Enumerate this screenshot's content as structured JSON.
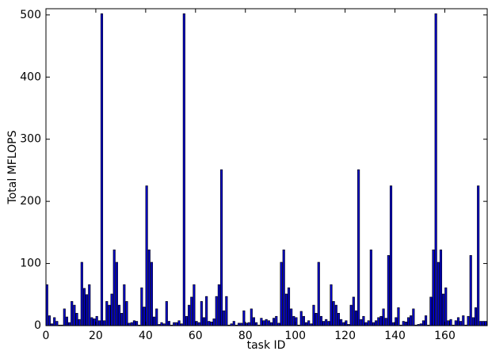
{
  "chart_data": {
    "type": "bar",
    "x_label": "task ID",
    "y_label": "Total MFLOPS",
    "x": [
      0,
      1,
      2,
      3,
      4,
      5,
      6,
      7,
      8,
      9,
      10,
      11,
      12,
      13,
      14,
      15,
      16,
      17,
      18,
      19,
      20,
      21,
      22,
      23,
      24,
      25,
      26,
      27,
      28,
      29,
      30,
      31,
      32,
      33,
      34,
      35,
      36,
      37,
      38,
      39,
      40,
      41,
      42,
      43,
      44,
      45,
      46,
      47,
      48,
      49,
      50,
      51,
      52,
      53,
      54,
      55,
      56,
      57,
      58,
      59,
      60,
      61,
      62,
      63,
      64,
      65,
      66,
      67,
      68,
      69,
      70,
      71,
      72,
      73,
      74,
      75,
      76,
      77,
      78,
      79,
      80,
      81,
      82,
      83,
      84,
      85,
      86,
      87,
      88,
      89,
      90,
      91,
      92,
      93,
      94,
      95,
      96,
      97,
      98,
      99,
      100,
      101,
      102,
      103,
      104,
      105,
      106,
      107,
      108,
      109,
      110,
      111,
      112,
      113,
      114,
      115,
      116,
      117,
      118,
      119,
      120,
      121,
      122,
      123,
      124,
      125,
      126,
      127,
      128,
      129,
      130,
      131,
      132,
      133,
      134,
      135,
      136,
      137,
      138,
      139,
      140,
      141,
      142,
      143,
      144,
      145,
      146,
      147,
      148,
      149,
      150,
      151,
      152,
      153,
      154,
      155,
      156,
      157,
      158,
      159,
      160,
      161,
      162,
      163,
      164,
      165,
      166,
      167,
      168,
      169,
      170,
      171,
      172,
      173,
      174,
      175,
      176
    ],
    "values": [
      66,
      16,
      3,
      13,
      7,
      1,
      1,
      27,
      14,
      5,
      39,
      33,
      20,
      10,
      102,
      60,
      50,
      66,
      13,
      11,
      15,
      8,
      502,
      8,
      39,
      33,
      51,
      122,
      102,
      33,
      20,
      66,
      39,
      4,
      5,
      8,
      7,
      1,
      61,
      30,
      225,
      122,
      102,
      14,
      27,
      2,
      5,
      3,
      39,
      7,
      1,
      5,
      5,
      8,
      3,
      502,
      15,
      33,
      46,
      66,
      7,
      5,
      39,
      13,
      47,
      7,
      6,
      11,
      47,
      66,
      251,
      24,
      47,
      1,
      3,
      7,
      1,
      4,
      4,
      24,
      4,
      5,
      27,
      13,
      5,
      1,
      12,
      8,
      10,
      8,
      5,
      12,
      15,
      4,
      102,
      122,
      51,
      61,
      27,
      15,
      13,
      1,
      23,
      15,
      5,
      8,
      3,
      33,
      20,
      102,
      15,
      7,
      10,
      7,
      66,
      39,
      33,
      20,
      10,
      5,
      8,
      2,
      33,
      46,
      24,
      251,
      10,
      15,
      5,
      8,
      122,
      5,
      8,
      13,
      15,
      27,
      12,
      113,
      225,
      5,
      13,
      29,
      1,
      7,
      6,
      13,
      16,
      27,
      1,
      2,
      3,
      8,
      16,
      1,
      46,
      122,
      502,
      102,
      122,
      51,
      61,
      8,
      10,
      1,
      8,
      13,
      7,
      16,
      1,
      15,
      113,
      13,
      29,
      225,
      7,
      7,
      7
    ],
    "color": "#0000cc",
    "bar_width": 0.8,
    "xlim": [
      0,
      177
    ],
    "ylim": [
      0,
      510
    ],
    "xticks": [
      0,
      20,
      40,
      60,
      80,
      100,
      120,
      140,
      160
    ],
    "yticks": [
      0,
      100,
      200,
      300,
      400,
      500
    ]
  }
}
